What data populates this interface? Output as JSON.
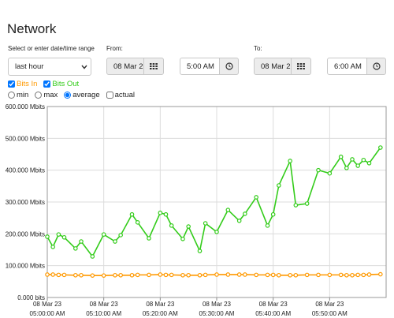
{
  "header": {
    "title": "Network"
  },
  "controls": {
    "range_label": "Select or enter date/time range",
    "range_value": "last hour",
    "from_label": "From:",
    "from_date": "08 Mar 2",
    "from_time": "5:00 AM",
    "to_label": "To:",
    "to_date": "08 Mar 2",
    "to_time": "6:00 AM",
    "aggregation": {
      "options": [
        "min",
        "max",
        "average"
      ],
      "selected": 2
    },
    "actual": {
      "label": "actual",
      "checked": false
    }
  },
  "chart_data": {
    "type": "line",
    "x": [
      "05:00:00 AM",
      "05:01:00 AM",
      "05:02:00 AM",
      "05:03:00 AM",
      "05:05:00 AM",
      "05:06:00 AM",
      "05:08:00 AM",
      "05:10:00 AM",
      "05:12:00 AM",
      "05:13:00 AM",
      "05:15:00 AM",
      "05:16:00 AM",
      "05:18:00 AM",
      "05:20:00 AM",
      "05:21:00 AM",
      "05:22:00 AM",
      "05:24:00 AM",
      "05:25:00 AM",
      "05:27:00 AM",
      "05:28:00 AM",
      "05:30:00 AM",
      "05:32:00 AM",
      "05:34:00 AM",
      "05:35:00 AM",
      "05:37:00 AM",
      "05:39:00 AM",
      "05:40:00 AM",
      "05:41:00 AM",
      "05:43:00 AM",
      "05:44:00 AM",
      "05:46:00 AM",
      "05:48:00 AM",
      "05:50:00 AM",
      "05:52:00 AM",
      "05:53:00 AM",
      "05:54:00 AM",
      "05:55:00 AM",
      "05:56:00 AM",
      "05:57:00 AM",
      "05:59:00 AM"
    ],
    "series": [
      {
        "name": "Bits In",
        "color": "#ff9900",
        "visible": true,
        "values": [
          72,
          72,
          71,
          71,
          70,
          70,
          69,
          69,
          70,
          70,
          70,
          71,
          71,
          72,
          71,
          71,
          70,
          70,
          70,
          71,
          72,
          72,
          72,
          72,
          71,
          71,
          71,
          70,
          70,
          70,
          71,
          71,
          71,
          71,
          70,
          70,
          71,
          71,
          72,
          73
        ]
      },
      {
        "name": "Bits Out",
        "color": "#33cc1a",
        "visible": true,
        "values": [
          191,
          159,
          198,
          189,
          154,
          176,
          129,
          198,
          176,
          196,
          261,
          236,
          186,
          266,
          261,
          226,
          184,
          223,
          146,
          233,
          206,
          275,
          241,
          263,
          315,
          226,
          261,
          352,
          429,
          290,
          295,
          400,
          390,
          442,
          407,
          434,
          414,
          432,
          422,
          471
        ]
      }
    ],
    "xlim": [
      "05:00:00 AM",
      "06:00:00 AM"
    ],
    "xticks": [
      {
        "value": "05:00:00 AM",
        "label": [
          "08 Mar 23",
          "05:00:00 AM"
        ]
      },
      {
        "value": "05:10:00 AM",
        "label": [
          "08 Mar 23",
          "05:10:00 AM"
        ]
      },
      {
        "value": "05:20:00 AM",
        "label": [
          "08 Mar 23",
          "05:20:00 AM"
        ]
      },
      {
        "value": "05:30:00 AM",
        "label": [
          "08 Mar 23",
          "05:30:00 AM"
        ]
      },
      {
        "value": "05:40:00 AM",
        "label": [
          "08 Mar 23",
          "05:40:00 AM"
        ]
      },
      {
        "value": "05:50:00 AM",
        "label": [
          "08 Mar 23",
          "05:50:00 AM"
        ]
      }
    ],
    "ylim": [
      0,
      600
    ],
    "yticks": [
      {
        "value": 0,
        "label": "0.000 bits"
      },
      {
        "value": 100,
        "label": "100.000 Mbits"
      },
      {
        "value": 200,
        "label": "200.000 Mbits"
      },
      {
        "value": 300,
        "label": "300.000 Mbits"
      },
      {
        "value": 400,
        "label": "400.000 Mbits"
      },
      {
        "value": 500,
        "label": "500.000 Mbits"
      },
      {
        "value": 600,
        "label": "600.000 Mbits"
      }
    ],
    "grid": true
  }
}
